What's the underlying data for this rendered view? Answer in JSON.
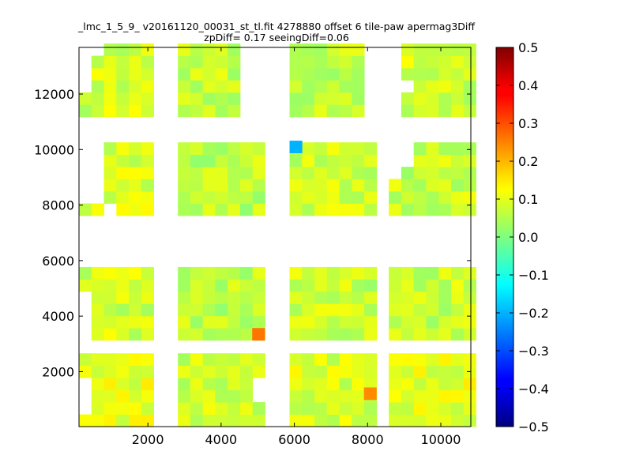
{
  "chart_data": {
    "type": "heatmap",
    "title_line1": "_lmc_1_5_9_ v20161120_00031_st_tl.fit 4278880 offset 6 tile-paw apermag3Diff",
    "title_line2": "zpDiff= 0.17 seeingDiff=0.06",
    "xlabel": "",
    "ylabel": "",
    "xlim": [
      120,
      10820
    ],
    "ylim": [
      20,
      13680
    ],
    "x_ticks": [
      {
        "value": 2000,
        "label": "2000"
      },
      {
        "value": 4000,
        "label": "4000"
      },
      {
        "value": 6000,
        "label": "6000"
      },
      {
        "value": 8000,
        "label": "8000"
      },
      {
        "value": 10000,
        "label": "10000"
      }
    ],
    "y_ticks": [
      {
        "value": 2000,
        "label": "2000"
      },
      {
        "value": 4000,
        "label": "4000"
      },
      {
        "value": 6000,
        "label": "6000"
      },
      {
        "value": 8000,
        "label": "8000"
      },
      {
        "value": 10000,
        "label": "10000"
      },
      {
        "value": 12000,
        "label": "12000"
      }
    ],
    "colorbar": {
      "colormap": "jet",
      "range": [
        -0.5,
        0.5
      ],
      "ticks": [
        {
          "value": 0.5,
          "label": "0.5"
        },
        {
          "value": 0.4,
          "label": "0.4"
        },
        {
          "value": 0.3,
          "label": "0.3"
        },
        {
          "value": 0.2,
          "label": "0.2"
        },
        {
          "value": 0.1,
          "label": "0.1"
        },
        {
          "value": 0.0,
          "label": "0.0"
        },
        {
          "value": -0.1,
          "label": "−0.1"
        },
        {
          "value": -0.2,
          "label": "−0.2"
        },
        {
          "value": -0.3,
          "label": "−0.3"
        },
        {
          "value": -0.4,
          "label": "−0.4"
        },
        {
          "value": -0.5,
          "label": "−0.5"
        }
      ]
    },
    "cell_size": [
      340,
      440
    ],
    "blocks": [
      {
        "name": "col1-row4",
        "x": 120,
        "y": 11180,
        "cols": 6,
        "rows": 6,
        "missing": [
          [
            0,
            5
          ],
          [
            0,
            4
          ],
          [
            0,
            3
          ],
          [
            0,
            2
          ],
          [
            1,
            5
          ]
        ],
        "base": 0.08
      },
      {
        "name": "col2-row4",
        "x": 2820,
        "y": 11180,
        "cols": 5,
        "rows": 6,
        "missing": [],
        "base": 0.07
      },
      {
        "name": "col3-row4",
        "x": 5870,
        "y": 11180,
        "cols": 6,
        "rows": 6,
        "missing": [],
        "base": 0.07
      },
      {
        "name": "col4-row4",
        "x": 8920,
        "y": 11180,
        "cols": 6,
        "rows": 6,
        "missing": [
          [
            0,
            2
          ]
        ],
        "base": 0.08
      },
      {
        "name": "col1-row3",
        "x": 120,
        "y": 7620,
        "cols": 6,
        "rows": 6,
        "missing": [
          [
            0,
            5
          ],
          [
            0,
            4
          ],
          [
            0,
            3
          ],
          [
            0,
            2
          ],
          [
            0,
            1
          ],
          [
            1,
            5
          ],
          [
            1,
            4
          ],
          [
            1,
            3
          ],
          [
            1,
            2
          ],
          [
            1,
            1
          ],
          [
            2,
            0
          ]
        ],
        "base": 0.09
      },
      {
        "name": "col2-row3",
        "x": 2820,
        "y": 7620,
        "cols": 7,
        "rows": 6,
        "missing": [],
        "base": 0.06
      },
      {
        "name": "col3-row3",
        "x": 5870,
        "y": 7620,
        "cols": 7,
        "rows": 6,
        "missing": [],
        "base": 0.08
      },
      {
        "name": "col4-row3",
        "x": 8580,
        "y": 7620,
        "cols": 7,
        "rows": 6,
        "missing": [
          [
            0,
            5
          ],
          [
            0,
            4
          ],
          [
            0,
            3
          ],
          [
            1,
            5
          ],
          [
            1,
            4
          ]
        ],
        "base": 0.07
      },
      {
        "name": "col1-row2",
        "x": 120,
        "y": 3130,
        "cols": 6,
        "rows": 6,
        "missing": [
          [
            0,
            3
          ],
          [
            0,
            2
          ],
          [
            0,
            1
          ],
          [
            0,
            0
          ]
        ],
        "base": 0.08
      },
      {
        "name": "col2-row2",
        "x": 2820,
        "y": 3130,
        "cols": 7,
        "rows": 6,
        "missing": [],
        "base": 0.06
      },
      {
        "name": "col3-row2",
        "x": 5870,
        "y": 3130,
        "cols": 7,
        "rows": 6,
        "missing": [],
        "base": 0.07
      },
      {
        "name": "col4-row2",
        "x": 8580,
        "y": 3130,
        "cols": 7,
        "rows": 6,
        "missing": [],
        "base": 0.07
      },
      {
        "name": "col1-row1",
        "x": 120,
        "y": 20,
        "cols": 6,
        "rows": 6,
        "missing": [
          [
            0,
            3
          ],
          [
            0,
            2
          ],
          [
            0,
            1
          ]
        ],
        "base": 0.1
      },
      {
        "name": "col2-row1",
        "x": 2820,
        "y": 20,
        "cols": 7,
        "rows": 6,
        "missing": [
          [
            6,
            2
          ],
          [
            6,
            3
          ]
        ],
        "base": 0.08
      },
      {
        "name": "col3-row1",
        "x": 5870,
        "y": 20,
        "cols": 7,
        "rows": 6,
        "missing": [],
        "base": 0.09
      },
      {
        "name": "col4-row1",
        "x": 8580,
        "y": 20,
        "cols": 7,
        "rows": 6,
        "missing": [],
        "base": 0.1
      }
    ],
    "special_cells": [
      {
        "x": 5870,
        "y": 9880,
        "w": 340,
        "h": 440,
        "value": -0.2
      },
      {
        "x": 4850,
        "y": 3130,
        "w": 340,
        "h": 440,
        "value": 0.26
      },
      {
        "x": 7900,
        "y": 990,
        "w": 340,
        "h": 440,
        "value": 0.24
      }
    ]
  }
}
